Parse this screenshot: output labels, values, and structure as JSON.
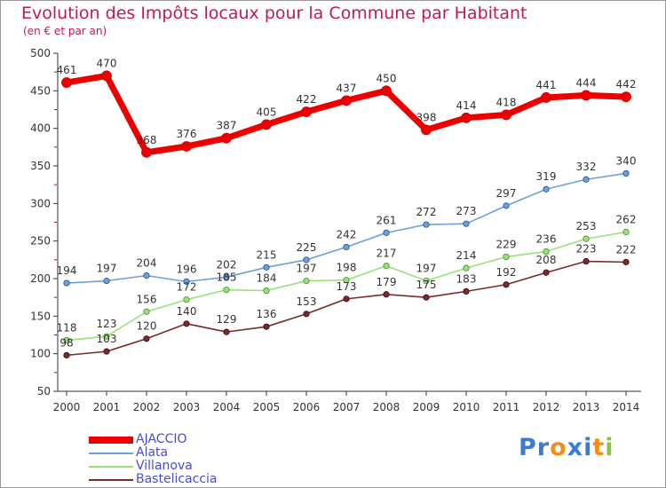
{
  "header": {
    "title": "Evolution des Impôts locaux pour la Commune par Habitant",
    "subtitle": "(en € et par an)"
  },
  "chart_data": {
    "type": "line",
    "title": "Evolution des Impôts locaux pour la Commune par Habitant",
    "subtitle": "(en € et par an)",
    "xlabel": "",
    "ylabel": "",
    "x": [
      "2000",
      "2001",
      "2002",
      "2003",
      "2004",
      "2005",
      "2006",
      "2007",
      "2008",
      "2009",
      "2010",
      "2011",
      "2012",
      "2013",
      "2014"
    ],
    "ylim": [
      50,
      500
    ],
    "yticks": [
      50,
      100,
      150,
      200,
      250,
      300,
      350,
      400,
      450,
      500
    ],
    "grid": false,
    "legend_position": "bottom-left",
    "series": [
      {
        "name": "AJACCIO",
        "color": "#ee0000",
        "values": [
          461,
          470,
          368,
          376,
          387,
          405,
          422,
          437,
          450,
          398,
          414,
          418,
          441,
          444,
          442
        ]
      },
      {
        "name": "Alata",
        "color": "#6f9fd8",
        "values": [
          194,
          197,
          204,
          196,
          202,
          215,
          225,
          242,
          261,
          272,
          273,
          297,
          319,
          332,
          340
        ]
      },
      {
        "name": "Villanova",
        "color": "#99e27a",
        "values": [
          118,
          123,
          156,
          172,
          185,
          184,
          197,
          198,
          217,
          197,
          214,
          229,
          236,
          253,
          262
        ]
      },
      {
        "name": "Bastelicaccia",
        "color": "#7a2a2a",
        "values": [
          98,
          103,
          120,
          140,
          129,
          136,
          153,
          173,
          179,
          175,
          183,
          192,
          208,
          223,
          222
        ]
      }
    ]
  },
  "legend": {
    "items": [
      {
        "label": "AJACCIO"
      },
      {
        "label": "Alata"
      },
      {
        "label": "Villanova"
      },
      {
        "label": "Bastelicaccia"
      }
    ],
    "label_color": "#4a4ad8"
  },
  "logo": {
    "text": "Proxiti",
    "letter_colors": [
      "#3a7bd5",
      "#3a7bd5",
      "#f28c1a",
      "#3a7bd5",
      "#3a7bd5",
      "#f28c1a",
      "#8bc34a"
    ]
  }
}
